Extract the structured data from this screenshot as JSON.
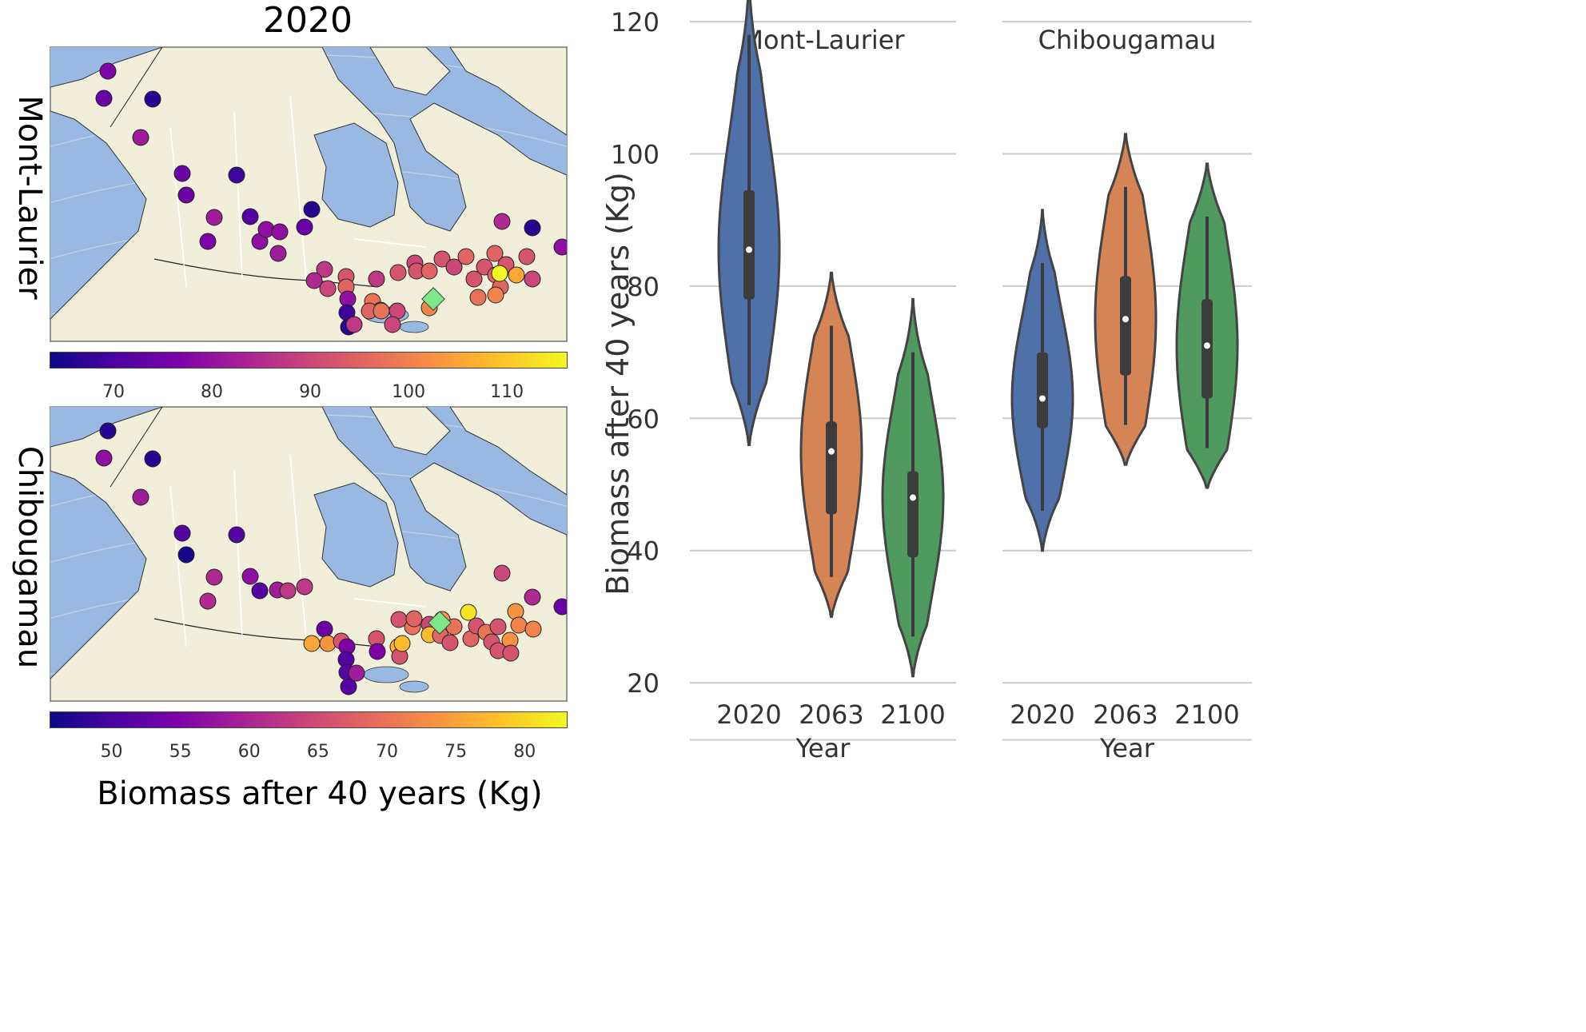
{
  "map_panel": {
    "title": "2020",
    "rows": [
      {
        "label": "Mont-Laurier",
        "colorbar_ticks": [
          "70",
          "80",
          "90",
          "100",
          "110"
        ],
        "colorbar_range": [
          63.5,
          116
        ]
      },
      {
        "label": "Chibougamau",
        "colorbar_ticks": [
          "50",
          "55",
          "60",
          "65",
          "70",
          "75",
          "80"
        ],
        "colorbar_range": [
          45.5,
          83
        ]
      }
    ],
    "colorbar_label": "Biomass after 40 years (Kg)",
    "colormap": "plasma",
    "land_color": "#f1efd9",
    "water_color": "#99b9e3",
    "source_marker_color": "#7ee787"
  },
  "chart_data": {
    "type": "violin",
    "ylabel": "Biomass after 40 years (Kg)",
    "xlabel": "Year",
    "ylim": [
      11,
      126
    ],
    "yticks": [
      20,
      40,
      60,
      80,
      100,
      120
    ],
    "categories": [
      "2020",
      "2063",
      "2100"
    ],
    "colors": [
      "#4f70a9",
      "#d58456",
      "#4f9a5e"
    ],
    "facets": [
      {
        "name": "Mont-Laurier",
        "violins": [
          {
            "year": "2020",
            "min": 56,
            "max": 126,
            "q1": 78,
            "median": 85.5,
            "q3": 94.5
          },
          {
            "year": "2063",
            "min": 30,
            "max": 82,
            "q1": 45.5,
            "median": 55,
            "q3": 59.5
          },
          {
            "year": "2100",
            "min": 21,
            "max": 78,
            "q1": 39,
            "median": 48,
            "q3": 52
          }
        ]
      },
      {
        "name": "Chibougamau",
        "violins": [
          {
            "year": "2020",
            "min": 40,
            "max": 91.5,
            "q1": 58.5,
            "median": 63,
            "q3": 70
          },
          {
            "year": "2063",
            "min": 53,
            "max": 103,
            "q1": 66.5,
            "median": 75,
            "q3": 81.5
          },
          {
            "year": "2100",
            "min": 49.5,
            "max": 98.5,
            "q1": 63,
            "median": 71,
            "q3": 78
          }
        ]
      }
    ]
  }
}
